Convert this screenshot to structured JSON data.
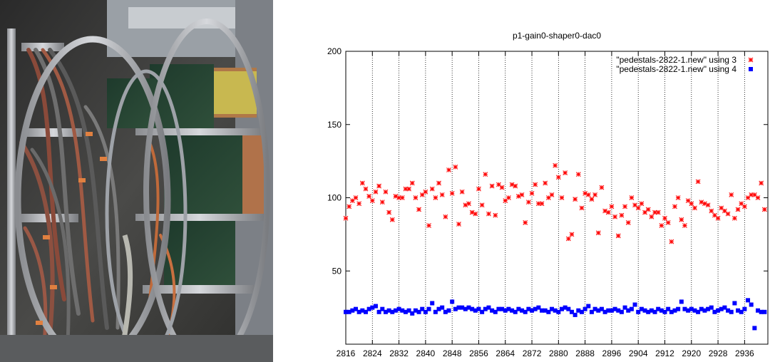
{
  "figure": {
    "photo": {
      "alt": "detector electronics crates with cabling"
    }
  },
  "chart_data": {
    "type": "scatter",
    "title": "p1-gain0-shaper0-dac0",
    "xlabel": "",
    "ylabel": "",
    "xlim": [
      2816,
      2943
    ],
    "ylim": [
      0,
      200
    ],
    "xticks": [
      2816,
      2824,
      2832,
      2840,
      2848,
      2856,
      2864,
      2872,
      2880,
      2888,
      2896,
      2904,
      2912,
      2920,
      2928,
      2936
    ],
    "yticks": [
      50,
      100,
      150,
      200
    ],
    "grid": "x-dotted",
    "legend_position": "top-right",
    "series": [
      {
        "name": "\"pedestals-2822-1.new\" using 3",
        "marker": "star",
        "color": "#ff0000",
        "x": [
          2816,
          2817,
          2818,
          2819,
          2820,
          2821,
          2822,
          2823,
          2824,
          2825,
          2826,
          2827,
          2828,
          2829,
          2830,
          2831,
          2832,
          2833,
          2834,
          2835,
          2836,
          2837,
          2838,
          2839,
          2840,
          2841,
          2842,
          2843,
          2844,
          2845,
          2846,
          2847,
          2848,
          2849,
          2850,
          2851,
          2852,
          2853,
          2854,
          2855,
          2856,
          2857,
          2858,
          2859,
          2860,
          2861,
          2862,
          2863,
          2864,
          2865,
          2866,
          2867,
          2868,
          2869,
          2870,
          2871,
          2872,
          2873,
          2874,
          2875,
          2876,
          2877,
          2878,
          2879,
          2880,
          2881,
          2882,
          2883,
          2884,
          2885,
          2886,
          2887,
          2888,
          2889,
          2890,
          2891,
          2892,
          2893,
          2894,
          2895,
          2896,
          2897,
          2898,
          2899,
          2900,
          2901,
          2902,
          2903,
          2904,
          2905,
          2906,
          2907,
          2908,
          2909,
          2910,
          2911,
          2912,
          2913,
          2914,
          2915,
          2916,
          2917,
          2918,
          2919,
          2920,
          2921,
          2922,
          2923,
          2924,
          2925,
          2926,
          2927,
          2928,
          2929,
          2930,
          2931,
          2932,
          2933,
          2934,
          2935,
          2936,
          2937,
          2938,
          2939,
          2940,
          2941,
          2942
        ],
        "values": [
          86,
          94,
          98,
          100,
          96,
          110,
          106,
          101,
          98,
          104,
          108,
          97,
          104,
          90,
          85,
          101,
          100,
          100,
          106,
          106,
          110,
          100,
          92,
          102,
          104,
          81,
          106,
          100,
          110,
          102,
          87,
          119,
          103,
          121,
          82,
          104,
          95,
          96,
          90,
          89,
          106,
          95,
          116,
          89,
          108,
          88,
          109,
          107,
          98,
          100,
          109,
          108,
          101,
          102,
          83,
          97,
          103,
          109,
          96,
          96,
          110,
          100,
          102,
          122,
          114,
          100,
          117,
          72,
          75,
          99,
          116,
          93,
          103,
          102,
          99,
          102,
          76,
          107,
          91,
          90,
          94,
          87,
          74,
          88,
          94,
          83,
          100,
          95,
          93,
          96,
          90,
          92,
          87,
          90,
          90,
          81,
          86,
          83,
          70,
          94,
          100,
          85,
          81,
          98,
          96,
          93,
          111,
          97,
          96,
          95,
          91,
          88,
          86,
          93,
          91,
          89,
          102,
          86,
          92,
          96,
          94,
          100,
          102,
          102,
          100,
          110,
          92
        ]
      },
      {
        "name": "\"pedestals-2822-1.new\" using 4",
        "marker": "square",
        "color": "#0000ff",
        "x": [
          2816,
          2817,
          2818,
          2819,
          2820,
          2821,
          2822,
          2823,
          2824,
          2825,
          2826,
          2827,
          2828,
          2829,
          2830,
          2831,
          2832,
          2833,
          2834,
          2835,
          2836,
          2837,
          2838,
          2839,
          2840,
          2841,
          2842,
          2843,
          2844,
          2845,
          2846,
          2847,
          2848,
          2849,
          2850,
          2851,
          2852,
          2853,
          2854,
          2855,
          2856,
          2857,
          2858,
          2859,
          2860,
          2861,
          2862,
          2863,
          2864,
          2865,
          2866,
          2867,
          2868,
          2869,
          2870,
          2871,
          2872,
          2873,
          2874,
          2875,
          2876,
          2877,
          2878,
          2879,
          2880,
          2881,
          2882,
          2883,
          2884,
          2885,
          2886,
          2887,
          2888,
          2889,
          2890,
          2891,
          2892,
          2893,
          2894,
          2895,
          2896,
          2897,
          2898,
          2899,
          2900,
          2901,
          2902,
          2903,
          2904,
          2905,
          2906,
          2907,
          2908,
          2909,
          2910,
          2911,
          2912,
          2913,
          2914,
          2915,
          2916,
          2917,
          2918,
          2919,
          2920,
          2921,
          2922,
          2923,
          2924,
          2925,
          2926,
          2927,
          2928,
          2929,
          2930,
          2931,
          2932,
          2933,
          2934,
          2935,
          2936,
          2937,
          2938,
          2939,
          2940,
          2941,
          2942
        ],
        "values": [
          22,
          22,
          23,
          24,
          22,
          23,
          22,
          24,
          25,
          26,
          22,
          24,
          22,
          23,
          22,
          23,
          24,
          23,
          22,
          23,
          21,
          23,
          22,
          24,
          22,
          24,
          28,
          22,
          24,
          25,
          22,
          23,
          29,
          24,
          25,
          25,
          24,
          25,
          24,
          23,
          24,
          22,
          24,
          25,
          23,
          22,
          24,
          24,
          23,
          24,
          23,
          22,
          24,
          23,
          22,
          24,
          23,
          24,
          25,
          23,
          23,
          22,
          24,
          23,
          22,
          24,
          25,
          24,
          22,
          20,
          23,
          22,
          24,
          26,
          22,
          24,
          23,
          24,
          22,
          23,
          23,
          24,
          23,
          22,
          25,
          23,
          24,
          27,
          22,
          24,
          23,
          22,
          23,
          22,
          24,
          23,
          22,
          24,
          22,
          23,
          24,
          29,
          24,
          23,
          24,
          23,
          22,
          24,
          23,
          24,
          25,
          22,
          23,
          24,
          25,
          23,
          22,
          28,
          23,
          22,
          24,
          30,
          27,
          11,
          23,
          22,
          22
        ]
      }
    ]
  }
}
